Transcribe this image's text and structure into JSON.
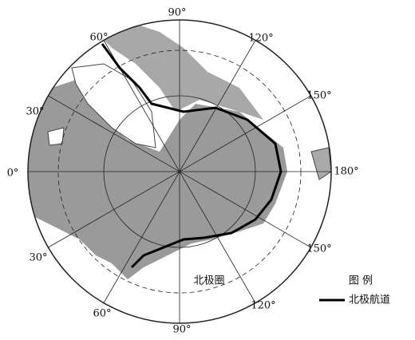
{
  "meridian_labels": [
    "90°",
    "120°",
    "150°",
    "180°",
    "150°",
    "120°",
    "90°",
    "60°",
    "30°",
    "0°",
    "30°",
    "60°"
  ],
  "arctic_circle_label": "北极圈",
  "legend": {
    "title": "图 例",
    "route": "北极航道"
  }
}
